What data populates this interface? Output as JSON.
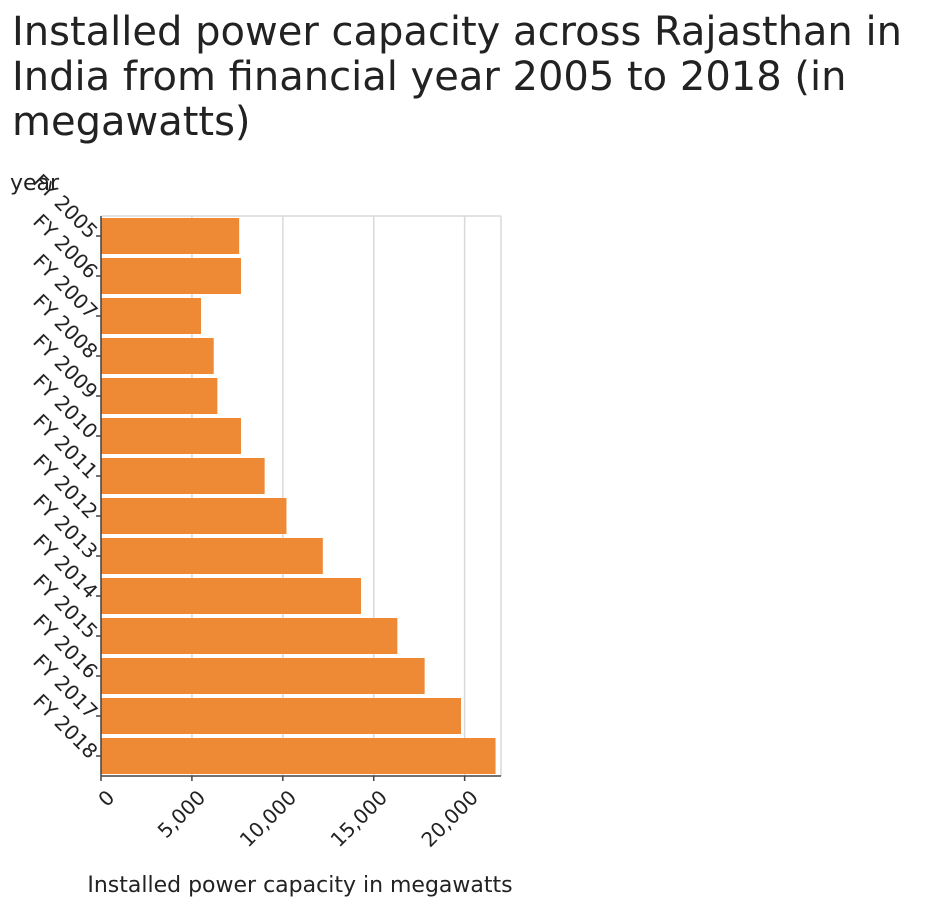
{
  "chart_data": {
    "type": "bar",
    "orientation": "horizontal",
    "title": "Installed power capacity across Rajasthan in India from financial year 2005 to 2018 (in megawatts)",
    "xlabel": "Installed power capacity in megawatts",
    "ylabel": "year",
    "categories": [
      "FY 2005",
      "FY 2006",
      "FY 2007",
      "FY 2008",
      "FY 2009",
      "FY 2010",
      "FY 2011",
      "FY 2012",
      "FY 2013",
      "FY 2014",
      "FY 2015",
      "FY 2016",
      "FY 2017",
      "FY 2018"
    ],
    "values": [
      7600,
      7700,
      5500,
      6200,
      6400,
      7700,
      9000,
      10200,
      12200,
      14300,
      16300,
      17800,
      19800,
      21700
    ],
    "xlim": [
      0,
      22000
    ],
    "xticks": [
      0,
      5000,
      10000,
      15000,
      20000
    ],
    "xtick_labels": [
      "0",
      "5,000",
      "10,000",
      "15,000",
      "20,000"
    ],
    "grid": "vertical",
    "bar_color": "#ee8936",
    "grid_color": "#d9d9d9",
    "axis_color": "#444444"
  }
}
